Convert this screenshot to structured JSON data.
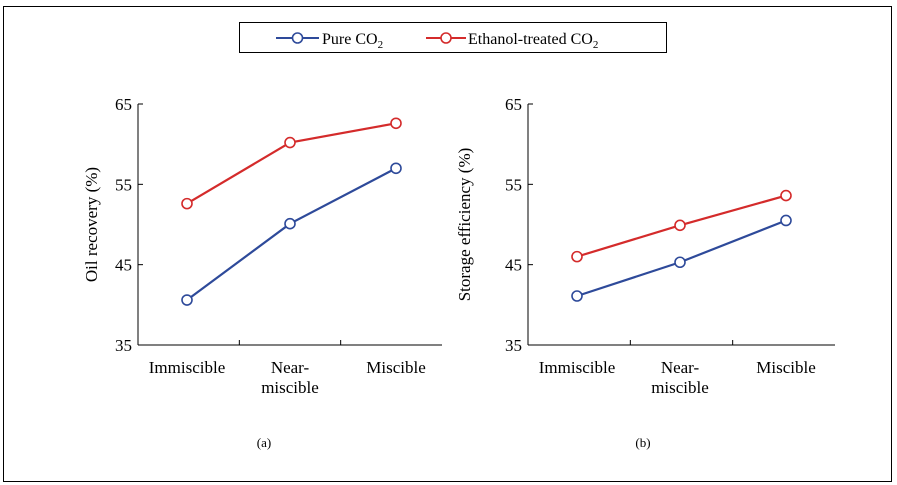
{
  "legend": {
    "items": [
      {
        "label": "Pure CO",
        "sub": "2",
        "color": "#2e4a9a"
      },
      {
        "label": "Ethanol-treated  CO",
        "sub": "2",
        "color": "#d42b2b"
      }
    ]
  },
  "chart_data": [
    {
      "type": "line",
      "panel_label": "(a)",
      "categories": [
        [
          "Immiscible"
        ],
        [
          "Near-",
          "miscible"
        ],
        [
          "Miscible"
        ]
      ],
      "ylabel": "Oil recovery  (%)",
      "ylim": [
        35,
        65
      ],
      "yticks": [
        35,
        45,
        55,
        65
      ],
      "series": [
        {
          "name": "Pure CO2",
          "color": "#2e4a9a",
          "values": [
            40.6,
            50.1,
            57.0
          ]
        },
        {
          "name": "Ethanol-treated CO2",
          "color": "#d42b2b",
          "values": [
            52.6,
            60.2,
            62.6
          ]
        }
      ]
    },
    {
      "type": "line",
      "panel_label": "(b)",
      "categories": [
        [
          "Immiscible"
        ],
        [
          "Near-",
          "miscible"
        ],
        [
          "Miscible"
        ]
      ],
      "ylabel": "Storage efficiency  (%)",
      "ylim": [
        35,
        65
      ],
      "yticks": [
        35,
        45,
        55,
        65
      ],
      "series": [
        {
          "name": "Pure CO2",
          "color": "#2e4a9a",
          "values": [
            41.1,
            45.3,
            50.5
          ]
        },
        {
          "name": "Ethanol-treated CO2",
          "color": "#d42b2b",
          "values": [
            46.0,
            49.9,
            53.6
          ]
        }
      ]
    }
  ]
}
